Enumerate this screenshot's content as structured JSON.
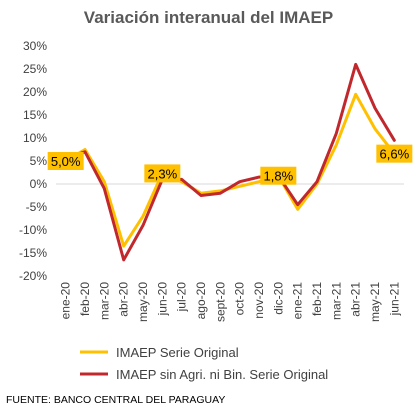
{
  "chart_data": {
    "type": "line",
    "title": "Variación interanual del IMAEP",
    "categories": [
      "ene-20",
      "feb-20",
      "mar-20",
      "abr-20",
      "may-20",
      "jun-20",
      "jul-20",
      "ago-20",
      "sept-20",
      "oct-20",
      "nov-20",
      "dic-20",
      "ene-21",
      "feb-21",
      "mar-21",
      "abr-21",
      "may-21",
      "jun-21"
    ],
    "series": [
      {
        "name": "IMAEP Serie Original",
        "color": "#FFC000",
        "values": [
          5.0,
          7.5,
          0.5,
          -13.5,
          -7.0,
          2.3,
          0.5,
          -2.0,
          -1.5,
          -0.5,
          0.5,
          1.8,
          -5.5,
          0.0,
          8.5,
          19.5,
          12.0,
          6.6
        ]
      },
      {
        "name": "IMAEP sin Agri. ni Bin. Serie Original",
        "color": "#C0282D",
        "values": [
          5.5,
          7.0,
          -1.0,
          -16.5,
          -9.0,
          1.0,
          1.0,
          -2.5,
          -2.0,
          0.5,
          1.5,
          1.8,
          -4.5,
          0.5,
          11.0,
          26.0,
          16.5,
          9.5
        ]
      }
    ],
    "ylim": [
      -20,
      30
    ],
    "yticks": [
      -20,
      -15,
      -10,
      -5,
      0,
      5,
      10,
      15,
      20,
      25,
      30
    ],
    "ytick_format": "%",
    "grid": false,
    "legend_position": "bottom",
    "annotations": [
      {
        "text": "5,0%",
        "category": "ene-20",
        "value": 5.0,
        "color": "#FFC000"
      },
      {
        "text": "2,3%",
        "category": "jun-20",
        "value": 2.3,
        "color": "#FFC000"
      },
      {
        "text": "1,8%",
        "category": "dic-20",
        "value": 1.8,
        "color": "#FFC000"
      },
      {
        "text": "6,6%",
        "category": "jun-21",
        "value": 6.6,
        "color": "#FFC000"
      }
    ]
  },
  "source": "FUENTE: BANCO CENTRAL DEL PARAGUAY"
}
